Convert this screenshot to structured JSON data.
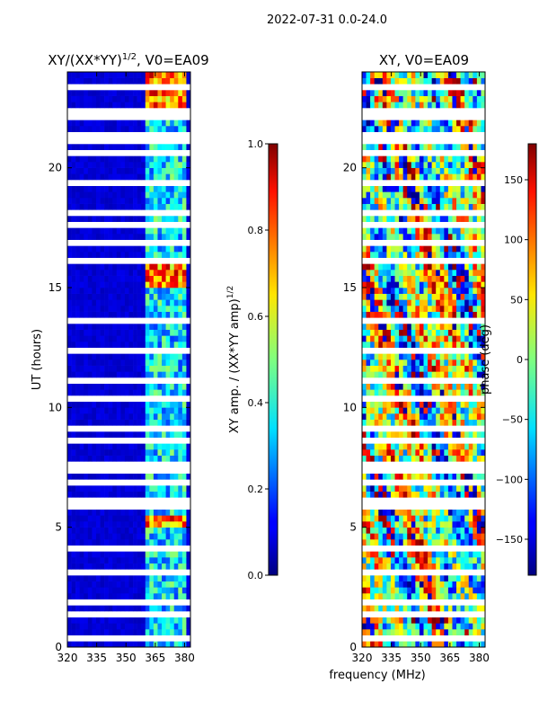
{
  "suptitle": "2022-07-31 0.0-24.0",
  "shared_xlabel": "frequency (MHz)",
  "chart_data": [
    {
      "type": "heatmap",
      "title": "XY/(XX*YY)",
      "title_exponent": "1/2",
      "title_suffix": ", V0=EA09",
      "xlabel": "",
      "ylabel": "UT (hours)",
      "xlim": [
        320,
        383
      ],
      "ylim": [
        0,
        24
      ],
      "xticks": [
        320,
        335,
        350,
        365,
        380
      ],
      "yticks": [
        0,
        5,
        10,
        15,
        20
      ],
      "colorbar": {
        "label": "XY amp. / (XX*YY amp)",
        "label_exponent": "1/2",
        "range": [
          0.0,
          1.0
        ],
        "ticks": [
          "0.0",
          "0.2",
          "0.4",
          "0.6",
          "0.8",
          "1.0"
        ],
        "tick_values": [
          0.0,
          0.2,
          0.4,
          0.6,
          0.8,
          1.0
        ],
        "colormap": "jet"
      },
      "bright_band_mhz": [
        360,
        380
      ],
      "gap_hours": [
        0.3,
        1.4,
        1.95,
        3.1,
        4.1,
        5.8,
        6.1,
        6.9,
        7.3,
        7.55,
        8.6,
        9.1,
        10.3,
        11.2,
        12.4,
        13.7,
        16.05,
        16.9,
        17.6,
        18.2,
        19.4,
        20.6,
        21.2,
        21.35,
        22.2,
        22.45,
        23.0,
        23.35
      ]
    },
    {
      "type": "heatmap",
      "title": "XY, V0=EA09",
      "xlabel": "",
      "ylabel": "",
      "xlim": [
        320,
        383
      ],
      "ylim": [
        0,
        24
      ],
      "xticks": [
        320,
        335,
        350,
        365,
        380
      ],
      "yticks": [
        0,
        5,
        10,
        15,
        20
      ],
      "colorbar": {
        "label": "phase (deg)",
        "range": [
          -180,
          180
        ],
        "ticks": [
          "−150",
          "−100",
          "−50",
          "0",
          "50",
          "100",
          "150"
        ],
        "tick_values": [
          -150,
          -100,
          -50,
          0,
          50,
          100,
          150
        ],
        "colormap": "jet"
      },
      "gap_hours": [
        0.3,
        1.4,
        1.95,
        3.1,
        4.1,
        5.8,
        6.1,
        6.9,
        7.3,
        7.55,
        8.6,
        9.1,
        10.3,
        11.2,
        12.4,
        13.7,
        16.05,
        16.9,
        17.6,
        18.2,
        19.4,
        20.6,
        21.2,
        21.35,
        22.2,
        22.45,
        23.0,
        23.35
      ]
    }
  ]
}
